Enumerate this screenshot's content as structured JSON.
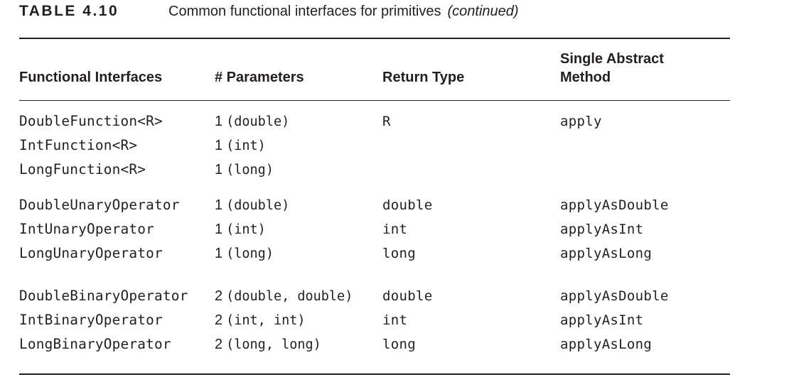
{
  "caption": {
    "label": "TABLE 4.10",
    "title": "Common functional interfaces for primitives",
    "note": "(continued)"
  },
  "table": {
    "headers": {
      "interfaces": "Functional Interfaces",
      "parameters": "# Parameters",
      "return_type": "Return Type",
      "method_line1": "Single Abstract",
      "method_line2": "Method"
    },
    "rows": [
      {
        "interface": "DoubleFunction<R>",
        "param_count": "1",
        "param_types": "(double)",
        "return_type": "R",
        "method": "apply"
      },
      {
        "interface": "IntFunction<R>",
        "param_count": "1",
        "param_types": "(int)",
        "return_type": "",
        "method": ""
      },
      {
        "interface": "LongFunction<R>",
        "param_count": "1",
        "param_types": "(long)",
        "return_type": "",
        "method": ""
      },
      {
        "interface": "DoubleUnaryOperator",
        "param_count": "1",
        "param_types": "(double)",
        "return_type": "double",
        "method": "applyAsDouble"
      },
      {
        "interface": "IntUnaryOperator",
        "param_count": "1",
        "param_types": "(int)",
        "return_type": "int",
        "method": "applyAsInt"
      },
      {
        "interface": "LongUnaryOperator",
        "param_count": "1",
        "param_types": "(long)",
        "return_type": "long",
        "method": "applyAsLong"
      },
      {
        "interface": "DoubleBinaryOperator",
        "param_count": "2",
        "param_types": "(double, double)",
        "return_type": "double",
        "method": "applyAsDouble"
      },
      {
        "interface": "IntBinaryOperator",
        "param_count": "2",
        "param_types": "(int, int)",
        "return_type": "int",
        "method": "applyAsInt"
      },
      {
        "interface": "LongBinaryOperator",
        "param_count": "2",
        "param_types": "(long, long)",
        "return_type": "long",
        "method": "applyAsLong"
      }
    ]
  }
}
